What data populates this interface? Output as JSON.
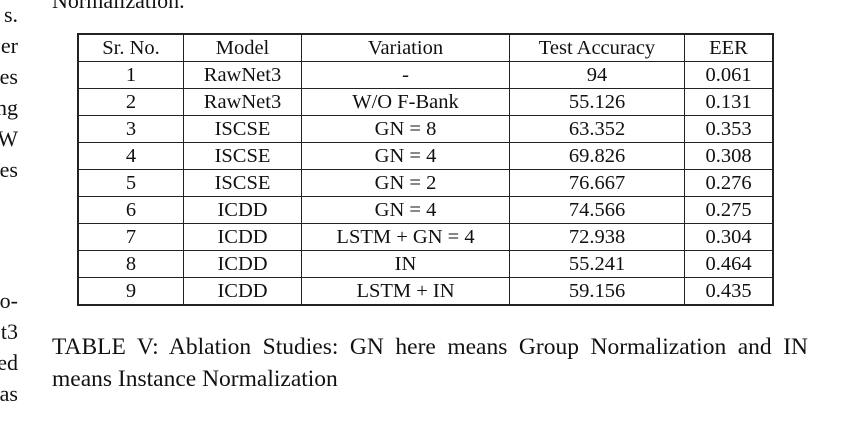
{
  "left_fragments": [
    "s.",
    "er",
    "es",
    "ng",
    "W",
    "es",
    "o-",
    "t3",
    "ed",
    "as"
  ],
  "top_fragment": "Normalization.",
  "table": {
    "headers": [
      "Sr. No.",
      "Model",
      "Variation",
      "Test Accuracy",
      "EER"
    ],
    "rows": [
      [
        "1",
        "RawNet3",
        "-",
        "94",
        "0.061"
      ],
      [
        "2",
        "RawNet3",
        "W/O F-Bank",
        "55.126",
        "0.131"
      ],
      [
        "3",
        "ISCSE",
        "GN = 8",
        "63.352",
        "0.353"
      ],
      [
        "4",
        "ISCSE",
        "GN = 4",
        "69.826",
        "0.308"
      ],
      [
        "5",
        "ISCSE",
        "GN = 2",
        "76.667",
        "0.276"
      ],
      [
        "6",
        "ICDD",
        "GN = 4",
        "74.566",
        "0.275"
      ],
      [
        "7",
        "ICDD",
        "LSTM + GN = 4",
        "72.938",
        "0.304"
      ],
      [
        "8",
        "ICDD",
        "IN",
        "55.241",
        "0.464"
      ],
      [
        "9",
        "ICDD",
        "LSTM + IN",
        "59.156",
        "0.435"
      ]
    ]
  },
  "caption": "TABLE V: Ablation Studies: GN here means Group Normalization and IN means Instance Normalization"
}
